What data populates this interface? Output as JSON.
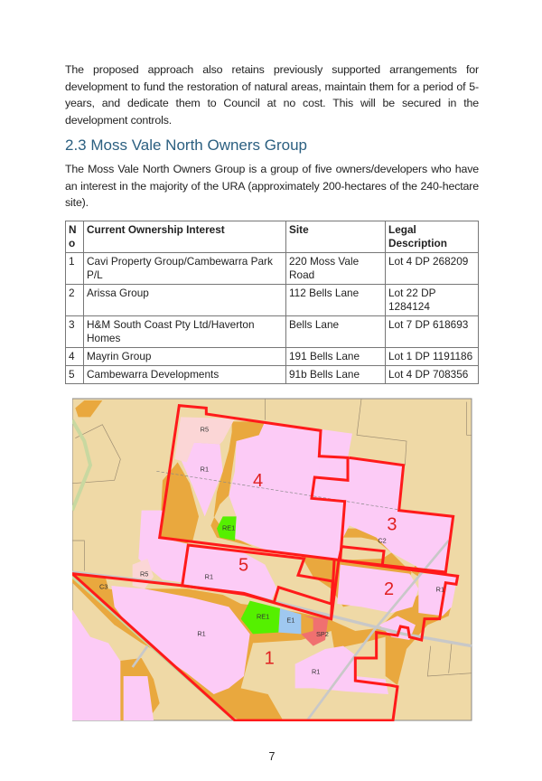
{
  "intro_paragraph": "The proposed approach also retains previously supported arrangements for development to fund the restoration of natural areas, maintain them for a period of 5-years, and dedicate them to Council at no cost. This will be secured in the development controls.",
  "section": {
    "heading": "2.3 Moss Vale North Owners Group",
    "paragraph": "The Moss Vale North Owners Group is a group of five owners/developers who have an interest in the majority of the URA (approximately 200-hectares of the 240-hectare site)."
  },
  "table": {
    "headers": [
      "No",
      "Current Ownership Interest",
      "Site",
      "Legal Description"
    ],
    "rows": [
      [
        "1",
        "Cavi Property Group/Cambewarra Park P/L",
        "220 Moss Vale Road",
        "Lot 4 DP 268209"
      ],
      [
        "2",
        "Arissa Group",
        "112 Bells Lane",
        "Lot 22 DP 1284124"
      ],
      [
        "3",
        "H&M South Coast Pty Ltd/Haverton Homes",
        "Bells Lane",
        "Lot 7 DP 618693"
      ],
      [
        "4",
        "Mayrin Group",
        "191 Bells Lane",
        "Lot 1 DP 1191186"
      ],
      [
        "5",
        "Cambewarra Developments",
        "91b Bells Lane",
        "Lot 4 DP 708356"
      ]
    ]
  },
  "map": {
    "site_labels": [
      "1",
      "2",
      "3",
      "4",
      "5"
    ],
    "zone_labels": [
      "R5",
      "R1",
      "RE1",
      "E1",
      "SP2",
      "C2",
      "C3"
    ],
    "colors": {
      "rural": "#efd9a6",
      "environmental": "#e9a83e",
      "residential": "#fccbf6",
      "large_lot": "#fbd6d6",
      "recreation": "#55f000",
      "employment": "#9fc8f0",
      "special": "#f07070",
      "boundary": "#ff1a1a"
    }
  },
  "page_number": "7"
}
